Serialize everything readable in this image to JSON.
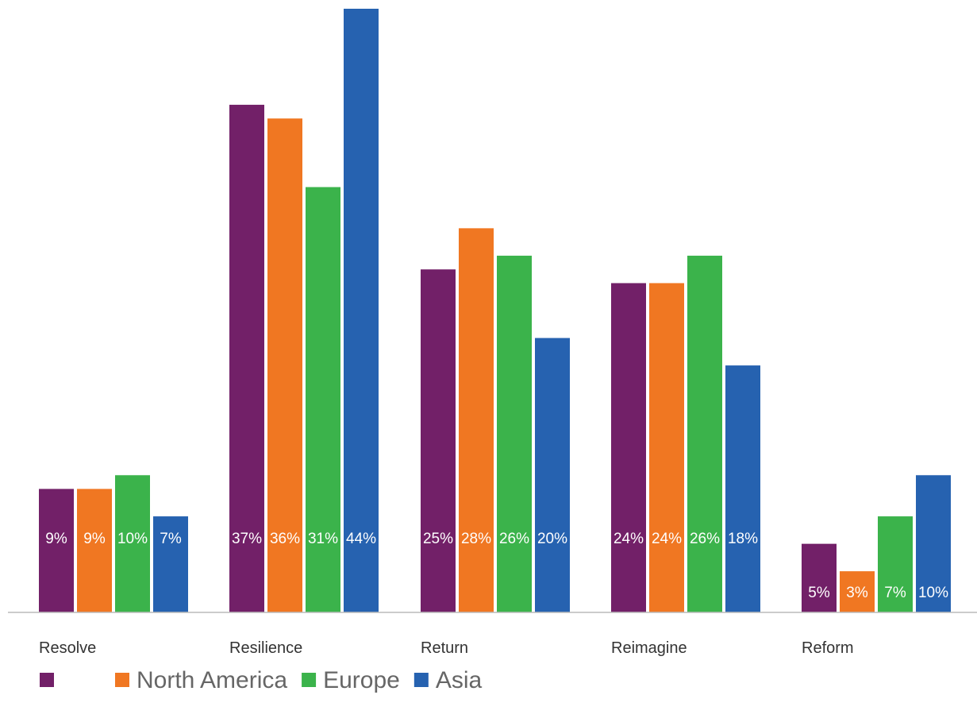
{
  "chart_data": {
    "type": "bar",
    "title": "",
    "xlabel": "",
    "ylabel": "",
    "ylim": [
      0,
      44
    ],
    "grid": false,
    "legend_position": "bottom-left",
    "categories": [
      "Resolve",
      "Resilience",
      "Return",
      "Reimagine",
      "Reform"
    ],
    "series": [
      {
        "name": "",
        "color": "#722068",
        "values": [
          9,
          37,
          25,
          24,
          5
        ],
        "labels": [
          "9%",
          "37%",
          "25%",
          "24%",
          "5%"
        ]
      },
      {
        "name": "North America",
        "color": "#f07722",
        "values": [
          9,
          36,
          28,
          24,
          3
        ],
        "labels": [
          "9%",
          "36%",
          "28%",
          "24%",
          "3%"
        ]
      },
      {
        "name": "Europe",
        "color": "#3bb34b",
        "values": [
          10,
          31,
          26,
          26,
          7
        ],
        "labels": [
          "10%",
          "31%",
          "26%",
          "26%",
          "7%"
        ]
      },
      {
        "name": "Asia",
        "color": "#2662b0",
        "values": [
          7,
          44,
          20,
          18,
          10
        ],
        "labels": [
          "7%",
          "44%",
          "20%",
          "18%",
          "10%"
        ]
      }
    ],
    "axis_color": "#bbbbbb"
  }
}
